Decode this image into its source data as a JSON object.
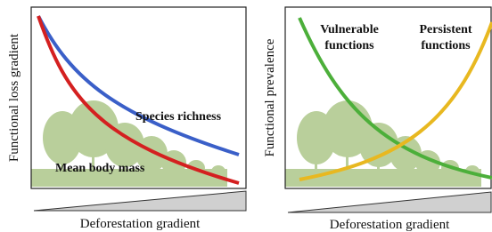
{
  "panels": [
    {
      "y_axis_label": "Functional loss gradient",
      "x_axis_label": "Deforestation gradient",
      "curve_labels": [
        [
          "Species richness"
        ],
        [
          "Mean body mass"
        ]
      ]
    },
    {
      "y_axis_label": "Functional prevalence",
      "x_axis_label": "Deforestation gradient",
      "curve_labels": [
        [
          "Vulnerable",
          "functions"
        ],
        [
          "Persistent",
          "functions"
        ]
      ]
    }
  ]
}
